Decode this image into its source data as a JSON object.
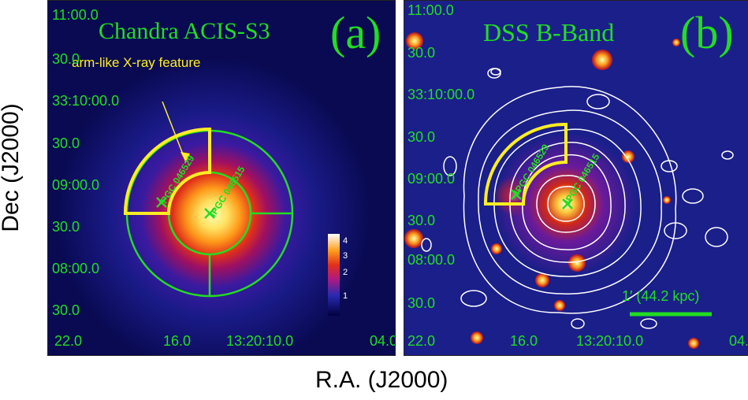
{
  "axes": {
    "ylabel": "Dec (J2000)",
    "xlabel": "R.A. (J2000)",
    "dec_ticks": [
      "11:00.0",
      "30.0",
      "33:10:00.0",
      "30.0",
      "09:00.0",
      "30.0",
      "08:00.0",
      "30.0"
    ],
    "ra_ticks": [
      "22.0",
      "16.0",
      "13:20:10.0",
      "04.0"
    ]
  },
  "panel_a": {
    "title": "Chandra ACIS-S3",
    "letter": "(a)",
    "annotation": "arm-like X-ray feature",
    "galaxy_1": "IPGC 046529",
    "galaxy_2": "IPGC 046515",
    "colorbar": {
      "ticks": [
        "4",
        "3",
        "2",
        "1"
      ]
    }
  },
  "panel_b": {
    "title": "DSS B-Band",
    "letter": "(b)",
    "galaxy_1": "IPGC 046529",
    "galaxy_2": "IPGC 046515",
    "scale_bar_label": "1′ (44.2 kpc)"
  },
  "colors": {
    "label_green": "#22dd22",
    "region_yellow": "#ffee22",
    "contour_white": "#ffffff"
  }
}
